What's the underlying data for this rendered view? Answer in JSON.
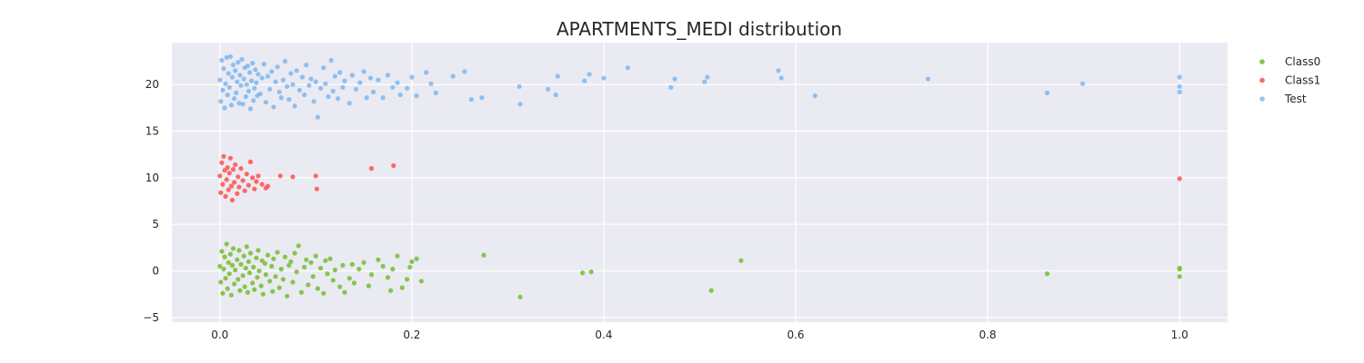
{
  "chart_data": {
    "type": "scatter",
    "title": "APARTMENTS_MEDI distribution",
    "xlabel": "",
    "ylabel": "",
    "xlim": [
      -0.05,
      1.05
    ],
    "ylim": [
      -5.5,
      24.5
    ],
    "xticks": [
      "0.0",
      "0.2",
      "0.4",
      "0.6",
      "0.8",
      "1.0"
    ],
    "yticks": [
      "20",
      "15",
      "10",
      "5",
      "0",
      "−5"
    ],
    "grid": true,
    "legend": "top-right, outside plot",
    "background": "#eaeaf2",
    "series": [
      {
        "name": "Class0",
        "color": "#7cc13e",
        "points": [
          [
            0.0,
            0.5
          ],
          [
            0.001,
            -1.2
          ],
          [
            0.002,
            2.1
          ],
          [
            0.003,
            -2.4
          ],
          [
            0.004,
            0.2
          ],
          [
            0.005,
            1.5
          ],
          [
            0.006,
            -0.8
          ],
          [
            0.007,
            2.9
          ],
          [
            0.008,
            -1.9
          ],
          [
            0.009,
            0.9
          ],
          [
            0.01,
            -0.3
          ],
          [
            0.011,
            1.8
          ],
          [
            0.012,
            -2.6
          ],
          [
            0.013,
            0.6
          ],
          [
            0.014,
            2.4
          ],
          [
            0.015,
            -1.4
          ],
          [
            0.016,
            0.1
          ],
          [
            0.018,
            1.2
          ],
          [
            0.019,
            -0.9
          ],
          [
            0.02,
            2.2
          ],
          [
            0.021,
            -2.1
          ],
          [
            0.022,
            0.7
          ],
          [
            0.024,
            -0.5
          ],
          [
            0.025,
            1.6
          ],
          [
            0.026,
            -1.7
          ],
          [
            0.027,
            0.3
          ],
          [
            0.028,
            2.6
          ],
          [
            0.029,
            -2.3
          ],
          [
            0.03,
            1.0
          ],
          [
            0.031,
            -0.2
          ],
          [
            0.032,
            1.9
          ],
          [
            0.034,
            -1.3
          ],
          [
            0.035,
            0.4
          ],
          [
            0.036,
            -2.0
          ],
          [
            0.038,
            1.4
          ],
          [
            0.039,
            -0.7
          ],
          [
            0.04,
            2.2
          ],
          [
            0.041,
            0.0
          ],
          [
            0.043,
            -1.6
          ],
          [
            0.044,
            1.1
          ],
          [
            0.045,
            -2.5
          ],
          [
            0.047,
            0.8
          ],
          [
            0.048,
            -0.4
          ],
          [
            0.05,
            1.7
          ],
          [
            0.052,
            -1.1
          ],
          [
            0.054,
            0.5
          ],
          [
            0.055,
            -2.2
          ],
          [
            0.056,
            1.3
          ],
          [
            0.058,
            -0.6
          ],
          [
            0.06,
            2.0
          ],
          [
            0.062,
            -1.8
          ],
          [
            0.064,
            0.2
          ],
          [
            0.066,
            -0.9
          ],
          [
            0.068,
            1.5
          ],
          [
            0.07,
            -2.7
          ],
          [
            0.072,
            0.6
          ],
          [
            0.074,
            1.0
          ],
          [
            0.076,
            -1.2
          ],
          [
            0.078,
            1.9
          ],
          [
            0.08,
            -0.1
          ],
          [
            0.082,
            2.7
          ],
          [
            0.085,
            -2.3
          ],
          [
            0.088,
            0.4
          ],
          [
            0.09,
            1.2
          ],
          [
            0.092,
            -1.5
          ],
          [
            0.095,
            0.9
          ],
          [
            0.097,
            -0.6
          ],
          [
            0.1,
            1.6
          ],
          [
            0.102,
            -1.9
          ],
          [
            0.105,
            0.3
          ],
          [
            0.108,
            -2.4
          ],
          [
            0.11,
            1.1
          ],
          [
            0.112,
            -0.3
          ],
          [
            0.115,
            1.3
          ],
          [
            0.118,
            -1.0
          ],
          [
            0.12,
            0.1
          ],
          [
            0.125,
            -1.7
          ],
          [
            0.128,
            0.6
          ],
          [
            0.13,
            -2.3
          ],
          [
            0.135,
            -0.8
          ],
          [
            0.138,
            0.7
          ],
          [
            0.14,
            -1.3
          ],
          [
            0.145,
            0.2
          ],
          [
            0.15,
            0.9
          ],
          [
            0.155,
            -1.6
          ],
          [
            0.158,
            -0.4
          ],
          [
            0.165,
            1.2
          ],
          [
            0.17,
            0.5
          ],
          [
            0.175,
            -0.7
          ],
          [
            0.178,
            -2.1
          ],
          [
            0.18,
            0.2
          ],
          [
            0.185,
            1.6
          ],
          [
            0.19,
            -1.8
          ],
          [
            0.195,
            -0.9
          ],
          [
            0.198,
            0.4
          ],
          [
            0.2,
            1.0
          ],
          [
            0.205,
            1.3
          ],
          [
            0.21,
            -1.1
          ],
          [
            0.275,
            1.7
          ],
          [
            0.313,
            -2.8
          ],
          [
            0.378,
            -0.2
          ],
          [
            0.387,
            -0.1
          ],
          [
            0.512,
            -2.1
          ],
          [
            0.543,
            1.1
          ],
          [
            0.862,
            -0.3
          ],
          [
            1.0,
            0.3
          ],
          [
            1.0,
            -0.6
          ],
          [
            1.0,
            0.2
          ]
        ]
      },
      {
        "name": "Class1",
        "color": "#ff5b5b",
        "points": [
          [
            0.0,
            10.2
          ],
          [
            0.001,
            8.4
          ],
          [
            0.002,
            11.6
          ],
          [
            0.003,
            9.3
          ],
          [
            0.004,
            12.3
          ],
          [
            0.005,
            10.8
          ],
          [
            0.006,
            8.0
          ],
          [
            0.007,
            9.8
          ],
          [
            0.008,
            11.1
          ],
          [
            0.009,
            8.7
          ],
          [
            0.01,
            10.5
          ],
          [
            0.011,
            12.1
          ],
          [
            0.012,
            9.1
          ],
          [
            0.013,
            7.6
          ],
          [
            0.014,
            10.9
          ],
          [
            0.015,
            9.5
          ],
          [
            0.016,
            11.4
          ],
          [
            0.018,
            8.3
          ],
          [
            0.019,
            10.1
          ],
          [
            0.02,
            9.0
          ],
          [
            0.022,
            11.0
          ],
          [
            0.024,
            9.7
          ],
          [
            0.026,
            8.6
          ],
          [
            0.028,
            10.4
          ],
          [
            0.03,
            9.2
          ],
          [
            0.032,
            11.7
          ],
          [
            0.034,
            10.0
          ],
          [
            0.036,
            8.8
          ],
          [
            0.038,
            9.6
          ],
          [
            0.04,
            10.2
          ],
          [
            0.044,
            9.3
          ],
          [
            0.048,
            8.9
          ],
          [
            0.05,
            9.1
          ],
          [
            0.063,
            10.2
          ],
          [
            0.076,
            10.1
          ],
          [
            0.1,
            10.2
          ],
          [
            0.101,
            8.8
          ],
          [
            0.158,
            11.0
          ],
          [
            0.181,
            11.3
          ],
          [
            1.0,
            9.9
          ]
        ]
      },
      {
        "name": "Test",
        "color": "#5aa7ee",
        "points": [
          [
            0.0,
            20.5
          ],
          [
            0.001,
            18.2
          ],
          [
            0.002,
            22.6
          ],
          [
            0.003,
            19.4
          ],
          [
            0.004,
            21.7
          ],
          [
            0.005,
            17.5
          ],
          [
            0.006,
            20.1
          ],
          [
            0.007,
            22.9
          ],
          [
            0.008,
            18.9
          ],
          [
            0.009,
            21.2
          ],
          [
            0.01,
            19.7
          ],
          [
            0.011,
            23.0
          ],
          [
            0.012,
            17.8
          ],
          [
            0.013,
            20.8
          ],
          [
            0.014,
            22.1
          ],
          [
            0.015,
            18.5
          ],
          [
            0.016,
            21.5
          ],
          [
            0.017,
            19.1
          ],
          [
            0.018,
            20.3
          ],
          [
            0.019,
            22.4
          ],
          [
            0.02,
            18.0
          ],
          [
            0.021,
            21.0
          ],
          [
            0.022,
            19.9
          ],
          [
            0.023,
            22.7
          ],
          [
            0.024,
            17.9
          ],
          [
            0.025,
            20.6
          ],
          [
            0.026,
            21.8
          ],
          [
            0.027,
            18.7
          ],
          [
            0.028,
            20.0
          ],
          [
            0.029,
            22.0
          ],
          [
            0.03,
            19.3
          ],
          [
            0.031,
            21.3
          ],
          [
            0.032,
            17.4
          ],
          [
            0.033,
            20.4
          ],
          [
            0.034,
            22.3
          ],
          [
            0.035,
            18.3
          ],
          [
            0.036,
            19.6
          ],
          [
            0.037,
            21.6
          ],
          [
            0.038,
            20.2
          ],
          [
            0.039,
            18.8
          ],
          [
            0.04,
            21.1
          ],
          [
            0.042,
            19.0
          ],
          [
            0.044,
            20.7
          ],
          [
            0.046,
            22.2
          ],
          [
            0.048,
            18.1
          ],
          [
            0.05,
            20.9
          ],
          [
            0.052,
            19.5
          ],
          [
            0.054,
            21.4
          ],
          [
            0.056,
            17.6
          ],
          [
            0.058,
            20.3
          ],
          [
            0.06,
            21.9
          ],
          [
            0.062,
            19.2
          ],
          [
            0.064,
            18.6
          ],
          [
            0.066,
            20.5
          ],
          [
            0.068,
            22.5
          ],
          [
            0.07,
            19.8
          ],
          [
            0.072,
            18.4
          ],
          [
            0.074,
            21.2
          ],
          [
            0.076,
            20.0
          ],
          [
            0.078,
            17.7
          ],
          [
            0.08,
            21.5
          ],
          [
            0.083,
            19.4
          ],
          [
            0.086,
            20.8
          ],
          [
            0.088,
            18.9
          ],
          [
            0.09,
            22.1
          ],
          [
            0.093,
            19.9
          ],
          [
            0.095,
            20.6
          ],
          [
            0.098,
            18.2
          ],
          [
            0.1,
            20.3
          ],
          [
            0.102,
            16.5
          ],
          [
            0.105,
            19.6
          ],
          [
            0.108,
            21.8
          ],
          [
            0.11,
            20.1
          ],
          [
            0.113,
            18.7
          ],
          [
            0.116,
            22.6
          ],
          [
            0.118,
            19.3
          ],
          [
            0.12,
            20.9
          ],
          [
            0.123,
            18.5
          ],
          [
            0.125,
            21.3
          ],
          [
            0.128,
            19.7
          ],
          [
            0.13,
            20.4
          ],
          [
            0.135,
            18.0
          ],
          [
            0.138,
            21.0
          ],
          [
            0.142,
            19.5
          ],
          [
            0.146,
            20.2
          ],
          [
            0.15,
            21.4
          ],
          [
            0.153,
            18.6
          ],
          [
            0.157,
            20.7
          ],
          [
            0.16,
            19.2
          ],
          [
            0.165,
            20.5
          ],
          [
            0.17,
            18.6
          ],
          [
            0.175,
            21.0
          ],
          [
            0.18,
            19.7
          ],
          [
            0.185,
            20.2
          ],
          [
            0.188,
            18.9
          ],
          [
            0.195,
            19.6
          ],
          [
            0.2,
            20.8
          ],
          [
            0.205,
            18.8
          ],
          [
            0.215,
            21.3
          ],
          [
            0.22,
            20.1
          ],
          [
            0.225,
            19.1
          ],
          [
            0.243,
            20.9
          ],
          [
            0.255,
            21.4
          ],
          [
            0.262,
            18.4
          ],
          [
            0.273,
            18.6
          ],
          [
            0.312,
            19.8
          ],
          [
            0.313,
            17.9
          ],
          [
            0.342,
            19.5
          ],
          [
            0.35,
            18.9
          ],
          [
            0.352,
            20.9
          ],
          [
            0.38,
            20.4
          ],
          [
            0.385,
            21.1
          ],
          [
            0.4,
            20.7
          ],
          [
            0.425,
            21.8
          ],
          [
            0.47,
            19.7
          ],
          [
            0.474,
            20.6
          ],
          [
            0.505,
            20.3
          ],
          [
            0.508,
            20.8
          ],
          [
            0.582,
            21.5
          ],
          [
            0.585,
            20.7
          ],
          [
            0.62,
            18.8
          ],
          [
            0.738,
            20.6
          ],
          [
            0.862,
            19.1
          ],
          [
            0.899,
            20.1
          ],
          [
            1.0,
            20.8
          ],
          [
            1.0,
            19.8
          ],
          [
            1.0,
            19.2
          ]
        ]
      }
    ]
  }
}
